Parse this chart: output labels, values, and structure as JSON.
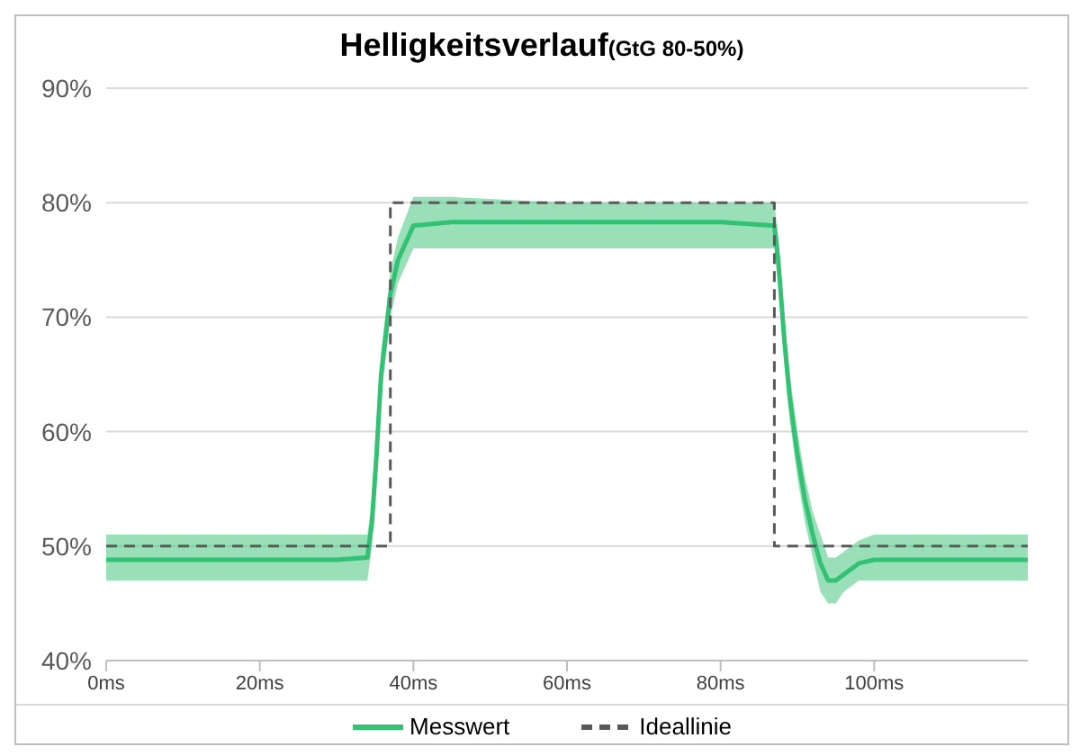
{
  "chart_data": {
    "type": "line",
    "title": "Helligkeitsverlauf",
    "subtitle": "(GtG 80-50%)",
    "xlim": [
      0,
      120
    ],
    "xticks": [
      {
        "value": 0,
        "label": "0ms"
      },
      {
        "value": 20,
        "label": "20ms"
      },
      {
        "value": 40,
        "label": "40ms"
      },
      {
        "value": 60,
        "label": "60ms"
      },
      {
        "value": 80,
        "label": "80ms"
      },
      {
        "value": 100,
        "label": "100ms"
      }
    ],
    "ylim": [
      40,
      90
    ],
    "yticks": [
      {
        "value": 40,
        "label": "40%"
      },
      {
        "value": 50,
        "label": "50%"
      },
      {
        "value": 60,
        "label": "60%"
      },
      {
        "value": 70,
        "label": "70%"
      },
      {
        "value": 80,
        "label": "80%"
      },
      {
        "value": 90,
        "label": "90%"
      }
    ],
    "grid": "y",
    "legend": "bottom",
    "marker": "none",
    "series": [
      {
        "name": "Messwert",
        "color": "#33c173",
        "line_style": "solid",
        "x": [
          0,
          10,
          20,
          30,
          34,
          34.6,
          35.2,
          35.8,
          36.5,
          37,
          38,
          40,
          45,
          60,
          80,
          87,
          87.5,
          88.3,
          89,
          90,
          91,
          92,
          93,
          94,
          95,
          96,
          98,
          100,
          110,
          120
        ],
        "values": [
          48.8,
          48.8,
          48.8,
          48.8,
          49,
          52,
          58,
          65,
          69,
          72,
          75,
          78,
          78.3,
          78.3,
          78.3,
          78,
          75,
          68,
          63,
          58,
          54,
          51,
          48.5,
          47,
          47,
          47.5,
          48.5,
          48.8,
          48.8,
          48.8
        ],
        "lower": [
          47,
          47,
          47,
          47,
          47,
          50,
          56,
          63,
          67,
          70,
          73,
          76,
          76,
          76,
          76,
          76,
          73,
          66,
          61,
          56,
          52,
          49,
          46,
          45,
          45,
          46,
          47,
          47,
          47,
          47
        ],
        "upper": [
          51,
          51,
          51,
          51,
          51,
          54,
          60,
          67,
          71,
          74,
          77,
          80.5,
          80.5,
          80,
          80,
          80,
          77,
          70,
          65,
          60,
          56,
          53,
          51,
          49,
          49,
          49.5,
          50.5,
          51,
          51,
          51
        ]
      },
      {
        "name": "Ideallinie",
        "type": "step",
        "color": "#595959",
        "line_style": "dashed",
        "x": [
          0,
          37,
          87,
          120
        ],
        "values": [
          50,
          80,
          50,
          50
        ]
      }
    ]
  }
}
